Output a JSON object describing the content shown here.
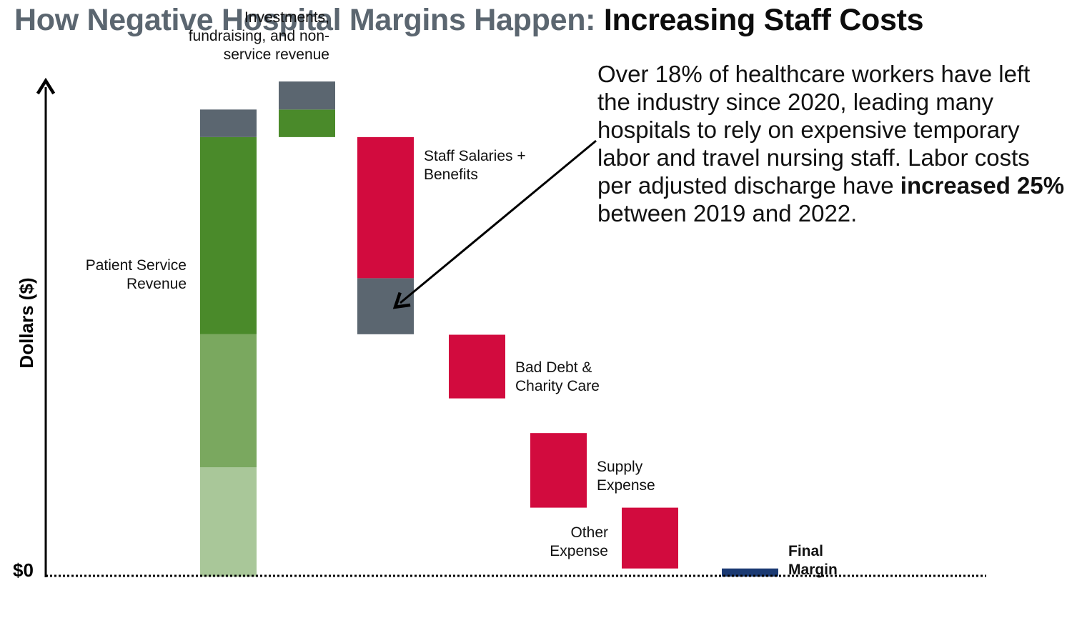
{
  "title": {
    "part1": "How Negative Hospital Margins Happen: ",
    "part2": "Increasing Staff Costs"
  },
  "annotation": {
    "text_start": "Over 18% of healthcare workers have left the industry since 2020, leading many hospitals to rely on expensive temporary labor and travel nursing staff. Labor costs per adjusted discharge have ",
    "text_bold": "increased 25%",
    "text_end": " between 2019 and 2022."
  },
  "chart_data": {
    "type": "waterfall",
    "title": "How Negative Hospital Margins Happen: Increasing Staff Costs",
    "ylabel": "Dollars ($)",
    "baseline_label": "$0",
    "ylim": [
      0,
      100
    ],
    "bars": [
      {
        "name": "Patient Service Revenue",
        "label_lines": [
          "Patient Service",
          "Revenue"
        ],
        "label_side": "left",
        "label_bold": false,
        "segments": [
          {
            "from": 0,
            "to": 23,
            "color": "#a9c799"
          },
          {
            "from": 23,
            "to": 51,
            "color": "#7aa85f"
          },
          {
            "from": 51,
            "to": 92.5,
            "color": "#4a8a2a"
          },
          {
            "from": 92.5,
            "to": 98.3,
            "color": "#5b6670"
          }
        ]
      },
      {
        "name": "Investments, fundraising, and non-service revenue",
        "label_lines": [
          "Investments,",
          "fundraising, and non-",
          "service revenue"
        ],
        "label_side": "above",
        "label_bold": false,
        "segments": [
          {
            "from": 92.5,
            "to": 98.3,
            "color": "#4a8a2a"
          },
          {
            "from": 98.3,
            "to": 104.2,
            "color": "#5b6670"
          }
        ]
      },
      {
        "name": "Staff Salaries + Benefits",
        "label_lines": [
          "Staff Salaries +",
          "Benefits"
        ],
        "label_side": "right",
        "label_bold": false,
        "segments": [
          {
            "from": 51,
            "to": 62.8,
            "color": "#5b6670"
          },
          {
            "from": 62.8,
            "to": 92.5,
            "color": "#d20b3e"
          }
        ]
      },
      {
        "name": "Bad Debt & Charity Care",
        "label_lines": [
          "Bad Debt &",
          "Charity Care"
        ],
        "label_side": "right",
        "label_bold": false,
        "segments": [
          {
            "from": 37.5,
            "to": 50.9,
            "color": "#d20b3e"
          }
        ]
      },
      {
        "name": "Supply Expense",
        "label_lines": [
          "Supply",
          "Expense"
        ],
        "label_side": "right",
        "label_bold": false,
        "segments": [
          {
            "from": 14.5,
            "to": 30.2,
            "color": "#d20b3e"
          }
        ]
      },
      {
        "name": "Other Expense",
        "label_lines": [
          "Other",
          "Expense"
        ],
        "label_side": "left",
        "label_bold": false,
        "segments": [
          {
            "from": 1.7,
            "to": 14.5,
            "color": "#d20b3e"
          }
        ]
      },
      {
        "name": "Final Margin",
        "label_lines": [
          "Final",
          "Margin"
        ],
        "label_side": "right",
        "label_bold": true,
        "segments": [
          {
            "from": 0,
            "to": 1.7,
            "color": "#1b3a73"
          }
        ]
      }
    ]
  }
}
